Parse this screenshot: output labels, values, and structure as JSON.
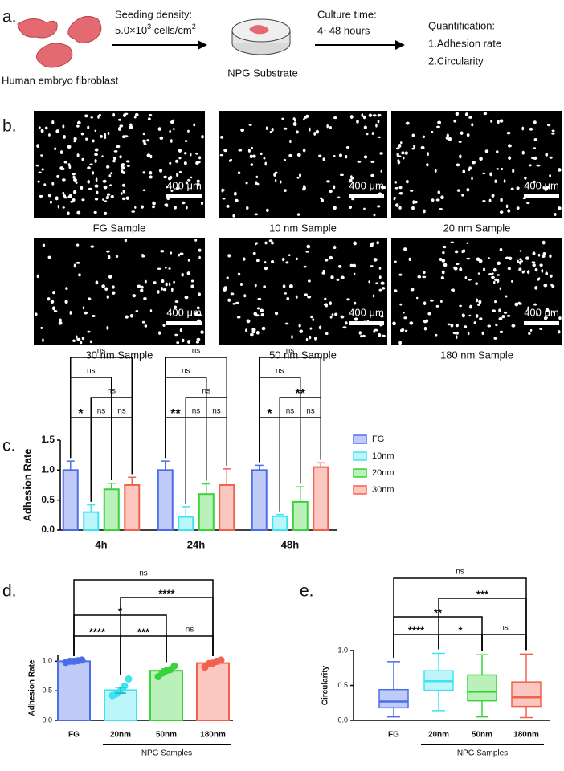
{
  "panel_labels": [
    "a.",
    "b.",
    "c.",
    "d.",
    "e."
  ],
  "schematic": {
    "cell_label": "Human embryo fibroblast",
    "seeding_title": "Seeding density:",
    "seeding_value": "5.0×10",
    "seeding_exp": "3",
    "seeding_unit": " cells/cm",
    "seeding_unit_exp": "2",
    "substrate": "NPG Substrate",
    "culture_title": "Culture time:",
    "culture_value": "4~48 hours",
    "quant_title": "Quantification:",
    "quant_1": "1.Adhesion rate",
    "quant_2": "2.Circularity"
  },
  "images": [
    {
      "caption": "FG Sample",
      "scale_bar": "400 μm"
    },
    {
      "caption": "10 nm Sample",
      "scale_bar": "400 μm"
    },
    {
      "caption": "20 nm Sample",
      "scale_bar": "400 μm"
    },
    {
      "caption": "30 nm Sample",
      "scale_bar": "400 μm"
    },
    {
      "caption": "50 nm Sample",
      "scale_bar": "400 μm"
    },
    {
      "caption": "180 nm Sample",
      "scale_bar": "400 μm"
    }
  ],
  "chart_data": [
    {
      "type": "bar",
      "ylabel": "Adhesion Rate",
      "categories": [
        "4h",
        "24h",
        "48h"
      ],
      "series": [
        {
          "name": "FG",
          "color": "#4b6ee8",
          "values": [
            1.0,
            1.0,
            1.0
          ],
          "errors": [
            0.15,
            0.15,
            0.08
          ]
        },
        {
          "name": "10nm",
          "color": "#3fe3f0",
          "values": [
            0.3,
            0.22,
            0.23
          ],
          "errors": [
            0.12,
            0.17,
            0.03
          ]
        },
        {
          "name": "20nm",
          "color": "#39d339",
          "values": [
            0.68,
            0.6,
            0.47
          ],
          "errors": [
            0.1,
            0.17,
            0.25
          ]
        },
        {
          "name": "30nm",
          "color": "#f2604e",
          "values": [
            0.75,
            0.75,
            1.05
          ],
          "errors": [
            0.13,
            0.27,
            0.07
          ]
        }
      ],
      "ylim": [
        0,
        1.5
      ],
      "yticks": [
        {
          "value": 0,
          "label": "0.0"
        },
        0.5,
        {
          "value": 1,
          "label": "1.0"
        },
        1.5
      ],
      "legend": "right",
      "significance": [
        [
          "*",
          "ns",
          "ns",
          "ns",
          "ns",
          "ns"
        ],
        [
          "**",
          "ns",
          "ns",
          "ns",
          "ns",
          "ns"
        ],
        [
          "*",
          "ns",
          "ns",
          "**",
          "ns",
          "ns"
        ]
      ]
    },
    {
      "type": "bar",
      "ylabel": "Adhesion Rate",
      "categories": [
        "FG",
        "20nm",
        "50nm",
        "180nm"
      ],
      "group_label": "NPG Samples",
      "colors": [
        "#4b6ee8",
        "#3fe3f0",
        "#39d339",
        "#f2604e"
      ],
      "values": [
        1.0,
        0.51,
        0.84,
        0.97
      ],
      "errors": [
        0.02,
        0.05,
        0.03,
        0.02
      ],
      "points": [
        [
          0.98,
          1.0,
          1.0,
          1.01,
          1.02
        ],
        [
          0.42,
          0.45,
          0.5,
          0.58,
          0.7
        ],
        [
          0.74,
          0.8,
          0.84,
          0.86,
          0.92
        ],
        [
          0.9,
          0.96,
          0.97,
          1.0,
          1.02
        ]
      ],
      "ylim": [
        0,
        1.1
      ],
      "yticks": [
        {
          "value": 0,
          "label": "0.0"
        },
        0.5,
        {
          "value": 1,
          "label": "1.0"
        }
      ],
      "significance": [
        "****",
        "***",
        "ns",
        "*",
        "****",
        "ns"
      ]
    },
    {
      "type": "box",
      "ylabel": "Circularity",
      "categories": [
        "FG",
        "20nm",
        "50nm",
        "180nm"
      ],
      "group_label": "NPG Samples",
      "colors": [
        "#4b6ee8",
        "#3fe3f0",
        "#39d339",
        "#f2604e"
      ],
      "boxes": [
        {
          "min": 0.05,
          "q1": 0.18,
          "median": 0.27,
          "q3": 0.44,
          "max": 0.84
        },
        {
          "min": 0.14,
          "q1": 0.43,
          "median": 0.56,
          "q3": 0.71,
          "max": 0.96
        },
        {
          "min": 0.05,
          "q1": 0.28,
          "median": 0.41,
          "q3": 0.65,
          "max": 0.94
        },
        {
          "min": 0.04,
          "q1": 0.2,
          "median": 0.33,
          "q3": 0.55,
          "max": 0.95
        }
      ],
      "ylim": [
        0,
        1
      ],
      "yticks": [
        {
          "value": 0,
          "label": "0.0"
        },
        0.5,
        {
          "value": 1,
          "label": "1.0"
        }
      ],
      "significance": [
        "****",
        "*",
        "ns",
        "**",
        "***",
        "ns"
      ]
    }
  ]
}
